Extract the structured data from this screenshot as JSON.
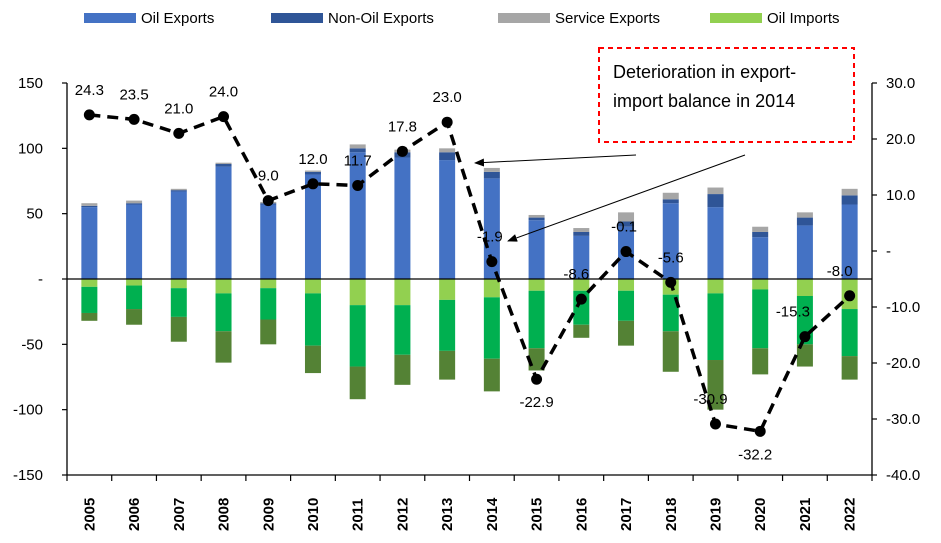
{
  "chart_data": {
    "type": "bar",
    "categories": [
      "2005",
      "2006",
      "2007",
      "2008",
      "2009",
      "2010",
      "2011",
      "2012",
      "2013",
      "2014",
      "2015",
      "2016",
      "2017",
      "2018",
      "2019",
      "2020",
      "2021",
      "2022"
    ],
    "bar_series": [
      {
        "name": "Oil Exports",
        "color": "#4472C4",
        "values": [
          55,
          57,
          67,
          86,
          57,
          80,
          97,
          93,
          91,
          77,
          45,
          33,
          40,
          58,
          55,
          32,
          41,
          57
        ]
      },
      {
        "name": "Non-Oil Exports",
        "color": "#2F5597",
        "values": [
          1,
          1,
          1,
          2,
          1,
          2,
          3,
          4,
          6,
          5,
          2,
          3,
          4,
          3,
          10,
          4,
          6,
          7
        ]
      },
      {
        "name": "Service Exports",
        "color": "#A6A6A6",
        "values": [
          2,
          2,
          1,
          1,
          1,
          1,
          3,
          2,
          3,
          3,
          2,
          3,
          7,
          5,
          5,
          4,
          4,
          5
        ]
      },
      {
        "name": "Oil Imports",
        "color": "#92D050",
        "values": [
          -6,
          -5,
          -7,
          -11,
          -7,
          -11,
          -20,
          -20,
          -16,
          -14,
          -9,
          -9,
          -9,
          -12,
          -11,
          -8,
          -13,
          -23
        ]
      },
      {
        "name": "",
        "color": "#00B050",
        "values": [
          -20,
          -18,
          -22,
          -29,
          -24,
          -40,
          -47,
          -38,
          -39,
          -47,
          -44,
          -26,
          -23,
          -28,
          -51,
          -45,
          -37,
          -36
        ]
      },
      {
        "name": "",
        "color": "#548235",
        "values": [
          -6,
          -12,
          -19,
          -24,
          -19,
          -21,
          -25,
          -23,
          -22,
          -25,
          -17,
          -10,
          -19,
          -31,
          -38,
          -20,
          -17,
          -18
        ]
      }
    ],
    "line_series": {
      "name": "",
      "values": [
        24.3,
        23.5,
        21.0,
        24.0,
        9.0,
        12.0,
        11.7,
        17.8,
        23.0,
        -1.9,
        -22.9,
        -8.6,
        -0.1,
        -5.6,
        -30.9,
        -32.2,
        -15.3,
        -8.0
      ],
      "labels": [
        "24.3",
        "23.5",
        "21.0",
        "24.0",
        "9.0",
        "12.0",
        "11.7",
        "17.8",
        "23.0",
        "-1.9",
        "-22.9",
        "-8.6",
        "-0.1",
        "-5.6",
        "-30.9",
        "-32.2",
        "-15.3",
        "-8.0"
      ]
    },
    "left_axis": {
      "ylim": [
        -150,
        150
      ],
      "ticks": [
        -150,
        -100,
        -50,
        0,
        50,
        100,
        150
      ],
      "tick_labels": [
        "-150",
        "-100",
        "-50",
        "-",
        "50",
        "100",
        "150"
      ]
    },
    "right_axis": {
      "ylim": [
        -40,
        30
      ],
      "ticks": [
        -40,
        -30,
        -20,
        -10,
        0,
        10,
        20,
        30
      ],
      "tick_labels": [
        "-40.0",
        "-30.0",
        "-20.0",
        "-10.0",
        "-",
        "10.0",
        "20.0",
        "30.0"
      ]
    },
    "legend": {
      "position": "top",
      "items": [
        "Oil Exports",
        "Non-Oil Exports",
        "Service Exports",
        "Oil Imports"
      ]
    },
    "annotation": {
      "text_lines": [
        "Deterioration in export-",
        "import balance in 2014"
      ],
      "border_color": "#FF0000"
    },
    "grid": false
  }
}
